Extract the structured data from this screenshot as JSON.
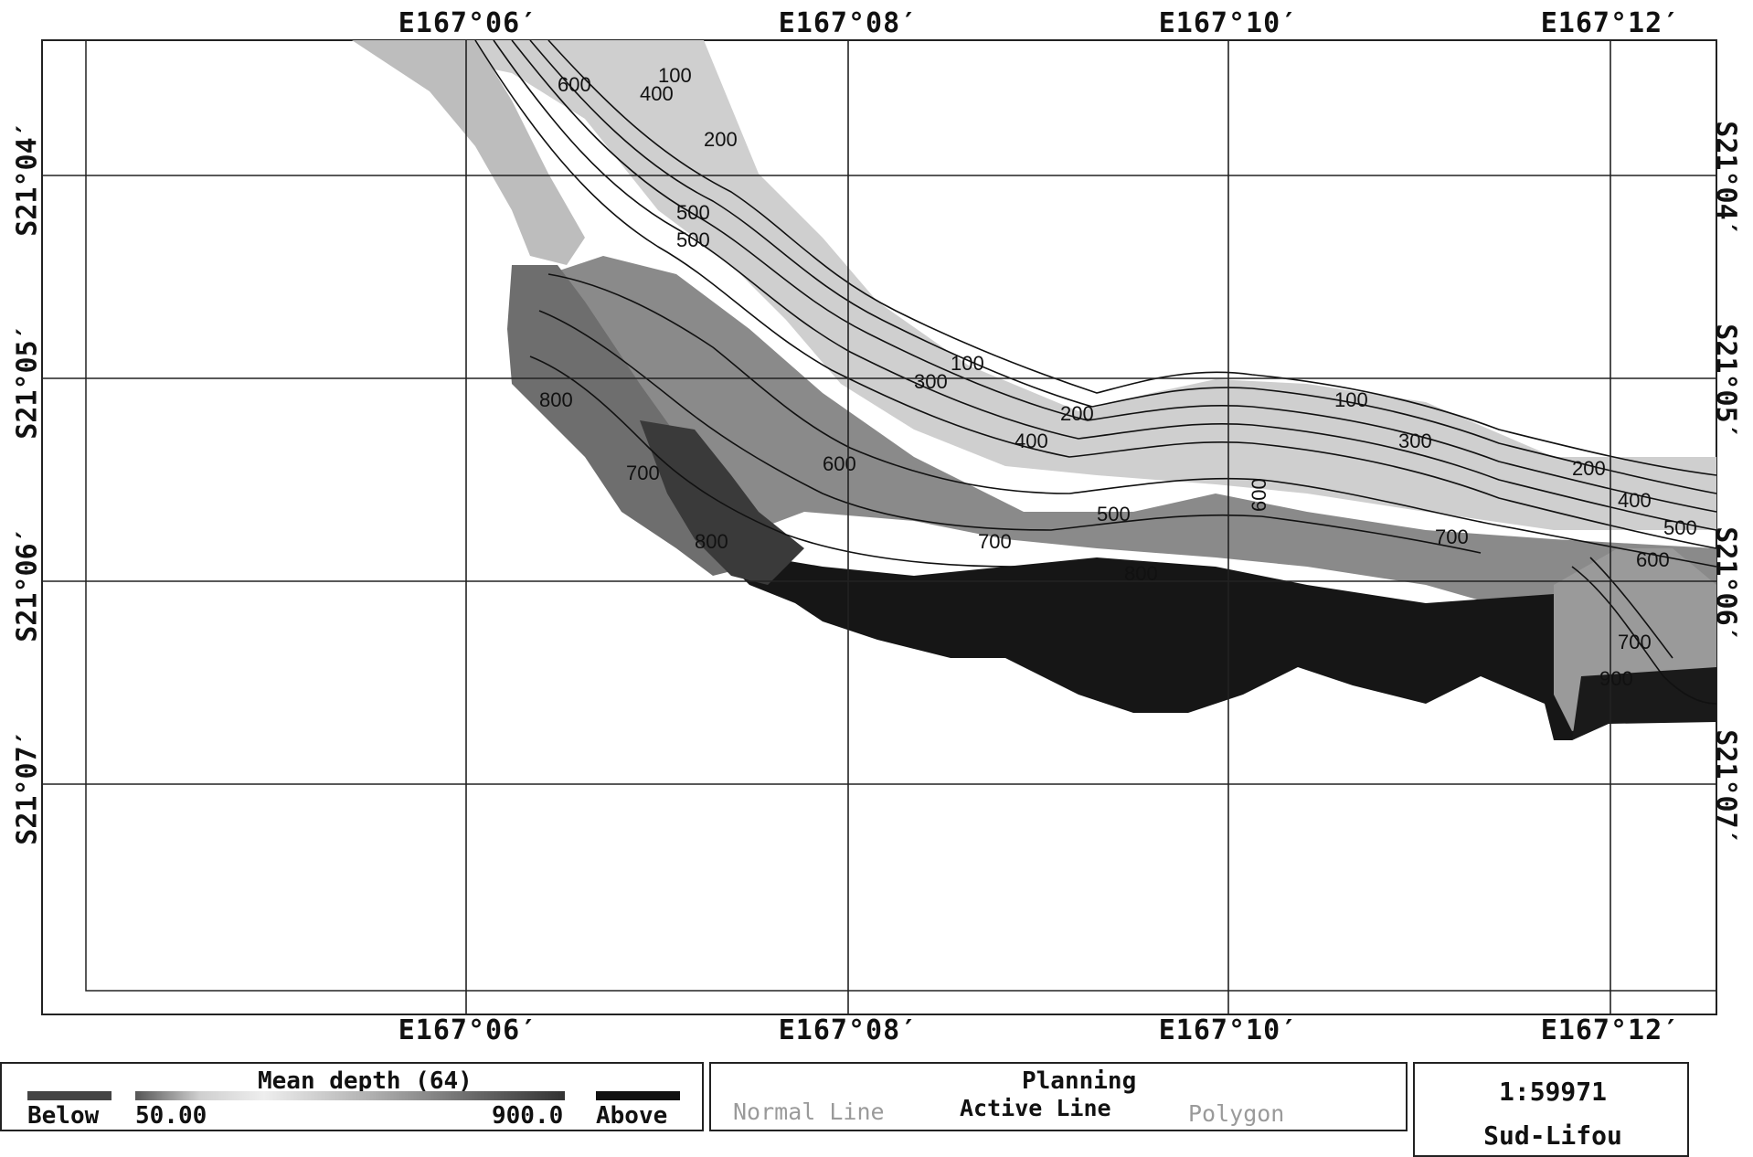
{
  "map": {
    "longitude_labels": [
      "E167°06′",
      "E167°08′",
      "E167°10′",
      "E167°12′"
    ],
    "latitude_labels": [
      "S21°04′",
      "S21°05′",
      "S21°06′",
      "S21°07′"
    ],
    "contour_labels": [
      "100",
      "200",
      "300",
      "400",
      "500",
      "600",
      "700",
      "800",
      "900"
    ],
    "colors": {
      "deep": "#151515",
      "shallow": "#f2f2f2",
      "mid": "#7a7a7a",
      "grid": "#222222"
    }
  },
  "legend": {
    "title": "Mean depth (64)",
    "below_label": "Below",
    "min_value": "50.00",
    "max_value": "900.0",
    "above_label": "Above"
  },
  "planning": {
    "title": "Planning",
    "options": [
      "Normal Line",
      "Active Line",
      "Polygon"
    ],
    "active_option": "Active Line"
  },
  "info": {
    "scale": "1:59971",
    "area_name": "Sud-Lifou"
  }
}
